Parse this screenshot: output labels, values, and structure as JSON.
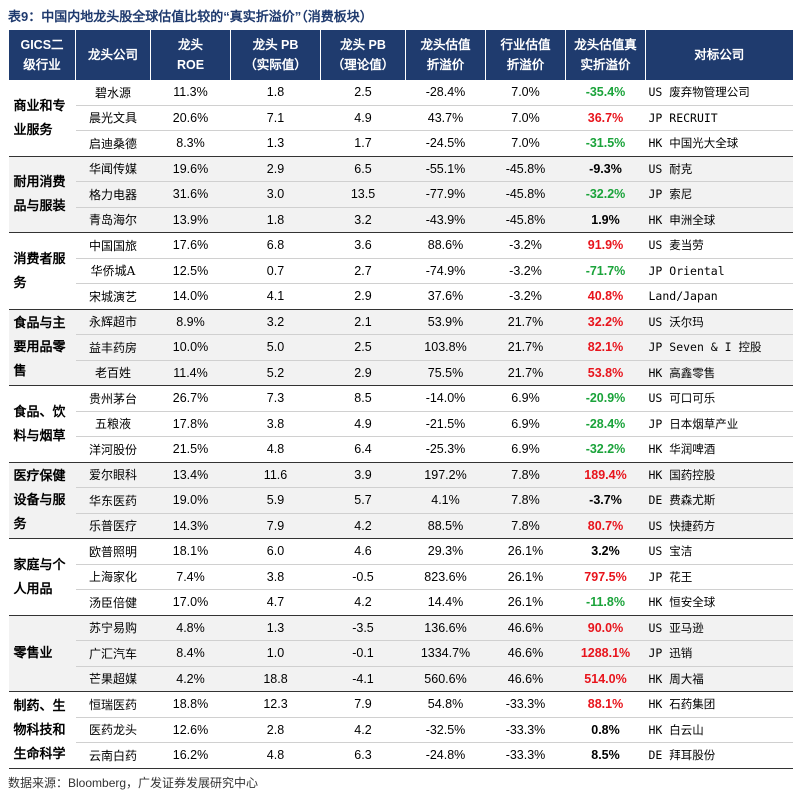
{
  "title": "表9：中国内地龙头股全球估值比较的“真实折溢价”（消费板块）",
  "header": {
    "columns": [
      [
        "GICS二",
        "级行业"
      ],
      [
        "龙头公司"
      ],
      [
        "龙头",
        "ROE"
      ],
      [
        "龙头 PB",
        "（实际值）"
      ],
      [
        "龙头 PB",
        "（理论值）"
      ],
      [
        "龙头估值",
        "折溢价"
      ],
      [
        "行业估值",
        "折溢价"
      ],
      [
        "龙头估值真",
        "实折溢价"
      ],
      [
        "对标公司"
      ]
    ]
  },
  "groups": [
    {
      "industry": "商业和专业服务",
      "rows": [
        {
          "company": "碧水源",
          "roe": "11.3%",
          "pb_actual": "1.8",
          "pb_theory": "2.5",
          "premium": "-28.4%",
          "industry_premium": "7.0%",
          "real_premium": "-35.4%",
          "real_color": "#1aa33a",
          "peer": "US 废弃物管理公司"
        },
        {
          "company": "晨光文具",
          "roe": "20.6%",
          "pb_actual": "7.1",
          "pb_theory": "4.9",
          "premium": "43.7%",
          "industry_premium": "7.0%",
          "real_premium": "36.7%",
          "real_color": "#e8141c",
          "peer": "JP RECRUIT"
        },
        {
          "company": "启迪桑德",
          "roe": "8.3%",
          "pb_actual": "1.3",
          "pb_theory": "1.7",
          "premium": "-24.5%",
          "industry_premium": "7.0%",
          "real_premium": "-31.5%",
          "real_color": "#1aa33a",
          "peer": "HK 中国光大全球"
        }
      ]
    },
    {
      "industry": "耐用消费品与服装",
      "rows": [
        {
          "company": "华闻传媒",
          "roe": "19.6%",
          "pb_actual": "2.9",
          "pb_theory": "6.5",
          "premium": "-55.1%",
          "industry_premium": "-45.8%",
          "real_premium": "-9.3%",
          "real_color": "#000000",
          "peer": "US 耐克"
        },
        {
          "company": "格力电器",
          "roe": "31.6%",
          "pb_actual": "3.0",
          "pb_theory": "13.5",
          "premium": "-77.9%",
          "industry_premium": "-45.8%",
          "real_premium": "-32.2%",
          "real_color": "#1aa33a",
          "peer": "JP 索尼"
        },
        {
          "company": "青岛海尔",
          "roe": "13.9%",
          "pb_actual": "1.8",
          "pb_theory": "3.2",
          "premium": "-43.9%",
          "industry_premium": "-45.8%",
          "real_premium": "1.9%",
          "real_color": "#000000",
          "peer": "HK 申洲全球"
        }
      ]
    },
    {
      "industry": "消费者服务",
      "rows": [
        {
          "company": "中国国旅",
          "roe": "17.6%",
          "pb_actual": "6.8",
          "pb_theory": "3.6",
          "premium": "88.6%",
          "industry_premium": "-3.2%",
          "real_premium": "91.9%",
          "real_color": "#e8141c",
          "peer": "US 麦当劳"
        },
        {
          "company": "华侨城A",
          "roe": "12.5%",
          "pb_actual": "0.7",
          "pb_theory": "2.7",
          "premium": "-74.9%",
          "industry_premium": "-3.2%",
          "real_premium": "-71.7%",
          "real_color": "#1aa33a",
          "peer": "JP Oriental"
        },
        {
          "company": "宋城演艺",
          "roe": "14.0%",
          "pb_actual": "4.1",
          "pb_theory": "2.9",
          "premium": "37.6%",
          "industry_premium": "-3.2%",
          "real_premium": "40.8%",
          "real_color": "#e8141c",
          "peer": "Land/Japan"
        }
      ]
    },
    {
      "industry": "食品与主要用品零售",
      "rows": [
        {
          "company": "永辉超市",
          "roe": "8.9%",
          "pb_actual": "3.2",
          "pb_theory": "2.1",
          "premium": "53.9%",
          "industry_premium": "21.7%",
          "real_premium": "32.2%",
          "real_color": "#e8141c",
          "peer": "US 沃尔玛"
        },
        {
          "company": "益丰药房",
          "roe": "10.0%",
          "pb_actual": "5.0",
          "pb_theory": "2.5",
          "premium": "103.8%",
          "industry_premium": "21.7%",
          "real_premium": "82.1%",
          "real_color": "#e8141c",
          "peer": "JP Seven & I 控股"
        },
        {
          "company": "老百姓",
          "roe": "11.4%",
          "pb_actual": "5.2",
          "pb_theory": "2.9",
          "premium": "75.5%",
          "industry_premium": "21.7%",
          "real_premium": "53.8%",
          "real_color": "#e8141c",
          "peer": "HK 高鑫零售"
        }
      ]
    },
    {
      "industry": "食品、饮料与烟草",
      "rows": [
        {
          "company": "贵州茅台",
          "roe": "26.7%",
          "pb_actual": "7.3",
          "pb_theory": "8.5",
          "premium": "-14.0%",
          "industry_premium": "6.9%",
          "real_premium": "-20.9%",
          "real_color": "#1aa33a",
          "peer": "US 可口可乐"
        },
        {
          "company": "五粮液",
          "roe": "17.8%",
          "pb_actual": "3.8",
          "pb_theory": "4.9",
          "premium": "-21.5%",
          "industry_premium": "6.9%",
          "real_premium": "-28.4%",
          "real_color": "#1aa33a",
          "peer": "JP 日本烟草产业"
        },
        {
          "company": "洋河股份",
          "roe": "21.5%",
          "pb_actual": "4.8",
          "pb_theory": "6.4",
          "premium": "-25.3%",
          "industry_premium": "6.9%",
          "real_premium": "-32.2%",
          "real_color": "#1aa33a",
          "peer": "HK 华润啤酒"
        }
      ]
    },
    {
      "industry": "医疗保健设备与服务",
      "rows": [
        {
          "company": "爱尔眼科",
          "roe": "13.4%",
          "pb_actual": "11.6",
          "pb_theory": "3.9",
          "premium": "197.2%",
          "industry_premium": "7.8%",
          "real_premium": "189.4%",
          "real_color": "#e8141c",
          "peer": "HK 国药控股"
        },
        {
          "company": "华东医药",
          "roe": "19.0%",
          "pb_actual": "5.9",
          "pb_theory": "5.7",
          "premium": "4.1%",
          "industry_premium": "7.8%",
          "real_premium": "-3.7%",
          "real_color": "#000000",
          "peer": "DE 费森尤斯"
        },
        {
          "company": "乐普医疗",
          "roe": "14.3%",
          "pb_actual": "7.9",
          "pb_theory": "4.2",
          "premium": "88.5%",
          "industry_premium": "7.8%",
          "real_premium": "80.7%",
          "real_color": "#e8141c",
          "peer": "US 快捷药方"
        }
      ]
    },
    {
      "industry": "家庭与个人用品",
      "rows": [
        {
          "company": "欧普照明",
          "roe": "18.1%",
          "pb_actual": "6.0",
          "pb_theory": "4.6",
          "premium": "29.3%",
          "industry_premium": "26.1%",
          "real_premium": "3.2%",
          "real_color": "#000000",
          "peer": "US 宝洁"
        },
        {
          "company": "上海家化",
          "roe": "7.4%",
          "pb_actual": "3.8",
          "pb_theory": "-0.5",
          "premium": "823.6%",
          "industry_premium": "26.1%",
          "real_premium": "797.5%",
          "real_color": "#e8141c",
          "peer": "JP 花王"
        },
        {
          "company": "汤臣倍健",
          "roe": "17.0%",
          "pb_actual": "4.7",
          "pb_theory": "4.2",
          "premium": "14.4%",
          "industry_premium": "26.1%",
          "real_premium": "-11.8%",
          "real_color": "#1aa33a",
          "peer": "HK 恒安全球"
        }
      ]
    },
    {
      "industry": "零售业",
      "rows": [
        {
          "company": "苏宁易购",
          "roe": "4.8%",
          "pb_actual": "1.3",
          "pb_theory": "-3.5",
          "premium": "136.6%",
          "industry_premium": "46.6%",
          "real_premium": "90.0%",
          "real_color": "#e8141c",
          "peer": "US 亚马逊"
        },
        {
          "company": "广汇汽车",
          "roe": "8.4%",
          "pb_actual": "1.0",
          "pb_theory": "-0.1",
          "premium": "1334.7%",
          "industry_premium": "46.6%",
          "real_premium": "1288.1%",
          "real_color": "#e8141c",
          "peer": "JP 迅销"
        },
        {
          "company": "芒果超媒",
          "roe": "4.2%",
          "pb_actual": "18.8",
          "pb_theory": "-4.1",
          "premium": "560.6%",
          "industry_premium": "46.6%",
          "real_premium": "514.0%",
          "real_color": "#e8141c",
          "peer": "HK 周大福"
        }
      ]
    },
    {
      "industry": "制药、生物科技和生命科学",
      "rows": [
        {
          "company": "恒瑞医药",
          "roe": "18.8%",
          "pb_actual": "12.3",
          "pb_theory": "7.9",
          "premium": "54.8%",
          "industry_premium": "-33.3%",
          "real_premium": "88.1%",
          "real_color": "#e8141c",
          "peer": "HK 石药集团"
        },
        {
          "company": "医药龙头",
          "roe": "12.6%",
          "pb_actual": "2.8",
          "pb_theory": "4.2",
          "premium": "-32.5%",
          "industry_premium": "-33.3%",
          "real_premium": "0.8%",
          "real_color": "#000000",
          "peer": "HK 白云山"
        },
        {
          "company": "云南白药",
          "roe": "16.2%",
          "pb_actual": "4.8",
          "pb_theory": "6.3",
          "premium": "-24.8%",
          "industry_premium": "-33.3%",
          "real_premium": "8.5%",
          "real_color": "#000000",
          "peer": "DE 拜耳股份"
        }
      ]
    }
  ],
  "source": "数据来源：Bloomberg，广发证券发展研究中心"
}
